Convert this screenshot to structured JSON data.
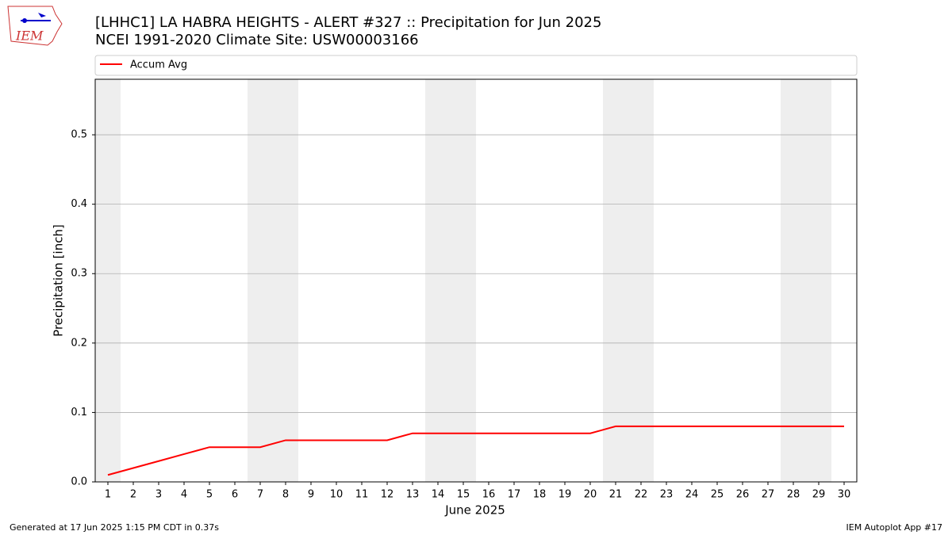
{
  "logo_text": "IEM",
  "footer": {
    "left": "Generated at 17 Jun 2025 1:15 PM CDT in 0.37s",
    "right": "IEM Autoplot App #17"
  },
  "chart_data": {
    "type": "line",
    "title": "[LHHC1] LA HABRA HEIGHTS - ALERT #327 :: Precipitation for Jun 2025",
    "subtitle": "NCEI 1991-2020 Climate Site: USW00003166",
    "x_label": "June 2025",
    "y_label": "Precipitation [inch]",
    "x": [
      1,
      2,
      3,
      4,
      5,
      6,
      7,
      8,
      9,
      10,
      11,
      12,
      13,
      14,
      15,
      16,
      17,
      18,
      19,
      20,
      21,
      22,
      23,
      24,
      25,
      26,
      27,
      28,
      29,
      30
    ],
    "series": [
      {
        "name": "Accum Avg",
        "color": "#ff0000",
        "values": [
          0.01,
          0.02,
          0.03,
          0.04,
          0.05,
          0.05,
          0.05,
          0.06,
          0.06,
          0.06,
          0.06,
          0.06,
          0.07,
          0.07,
          0.07,
          0.07,
          0.07,
          0.07,
          0.07,
          0.07,
          0.08,
          0.08,
          0.08,
          0.08,
          0.08,
          0.08,
          0.08,
          0.08,
          0.08,
          0.08
        ]
      }
    ],
    "shaded_days": [
      1,
      7,
      8,
      14,
      15,
      21,
      22,
      28,
      29
    ],
    "shade_color": "#eeeeee",
    "xlim": [
      0.5,
      30.5
    ],
    "xticks": [
      1,
      2,
      3,
      4,
      5,
      6,
      7,
      8,
      9,
      10,
      11,
      12,
      13,
      14,
      15,
      16,
      17,
      18,
      19,
      20,
      21,
      22,
      23,
      24,
      25,
      26,
      27,
      28,
      29,
      30
    ],
    "ylim": [
      0,
      0.58
    ],
    "yticks": [
      {
        "value": 0,
        "label": "0.0"
      },
      {
        "value": 0.1,
        "label": "0.1"
      },
      {
        "value": 0.2,
        "label": "0.2"
      },
      {
        "value": 0.3,
        "label": "0.3"
      },
      {
        "value": 0.4,
        "label": "0.4"
      },
      {
        "value": 0.5,
        "label": "0.5"
      }
    ],
    "grid": true,
    "legend": "top"
  }
}
